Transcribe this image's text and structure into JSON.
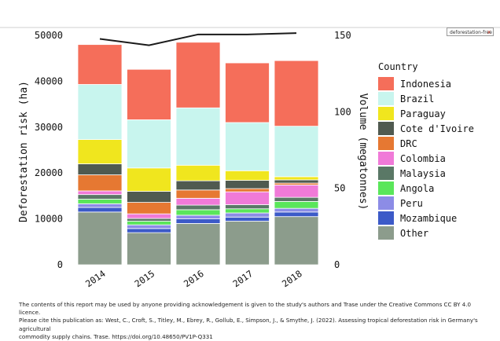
{
  "search_chip": {
    "text": "deforestation-free",
    "close": "x"
  },
  "chart_data": {
    "type": "bar",
    "stacked": true,
    "categories": [
      "2014",
      "2015",
      "2016",
      "2017",
      "2018"
    ],
    "ylabel": "Deforestation risk (ha)",
    "ylim": [
      0,
      50000
    ],
    "yticks": [
      0,
      10000,
      20000,
      30000,
      40000,
      50000
    ],
    "y2label": "Volume (megatonnes)",
    "y2lim": [
      0,
      150
    ],
    "y2ticks": [
      0,
      50,
      100,
      150
    ],
    "legend_title": "Country",
    "legend_position": "right",
    "series": [
      {
        "name": "Other",
        "color": "#8c9c8c",
        "values": [
          11500,
          7000,
          9000,
          9500,
          10500
        ]
      },
      {
        "name": "Mozambique",
        "color": "#3c5ac8",
        "values": [
          1000,
          900,
          1000,
          900,
          1000
        ]
      },
      {
        "name": "Peru",
        "color": "#8c8ce6",
        "values": [
          800,
          800,
          800,
          900,
          800
        ]
      },
      {
        "name": "Angola",
        "color": "#5ae65a",
        "values": [
          1000,
          800,
          1200,
          900,
          1500
        ]
      },
      {
        "name": "Malaysia",
        "color": "#5a7866",
        "values": [
          1000,
          600,
          1000,
          900,
          900
        ]
      },
      {
        "name": "Colombia",
        "color": "#f07ad8",
        "values": [
          800,
          1000,
          1500,
          2800,
          2700
        ]
      },
      {
        "name": "DRC",
        "color": "#e67832",
        "values": [
          3500,
          2500,
          1800,
          700,
          400
        ]
      },
      {
        "name": "Cote d'Ivoire",
        "color": "#505a50",
        "values": [
          2400,
          2400,
          2000,
          1800,
          700
        ]
      },
      {
        "name": "Paraguay",
        "color": "#f0e61e",
        "values": [
          5300,
          5100,
          3400,
          2100,
          700
        ]
      },
      {
        "name": "Brazil",
        "color": "#c8f5ee",
        "values": [
          12000,
          10500,
          12500,
          10500,
          11000
        ]
      },
      {
        "name": "Indonesia",
        "color": "#f56e5a",
        "values": [
          8700,
          11000,
          14300,
          13000,
          14300
        ]
      }
    ],
    "volume_line": {
      "name": "Volume",
      "color": "#1a1a1a",
      "values": [
        147.7,
        143.5,
        150.6,
        150.6,
        151.5
      ]
    }
  },
  "footnote": {
    "line1": "The contents of this report may be used by anyone providing acknowledgement is given to the study's authors and Trase under the Creative Commons CC BY 4.0 licence.",
    "line2": "Please cite this publication as: West, C., Croft, S., Titley, M., Ebrey, R., Gollub, E., Simpson, J., & Smythe, J. (2022). Assessing tropical deforestation risk in Germany's agricultural",
    "line3": "commodity supply chains. Trase. https://doi.org/10.48650/PV1P-Q331"
  }
}
